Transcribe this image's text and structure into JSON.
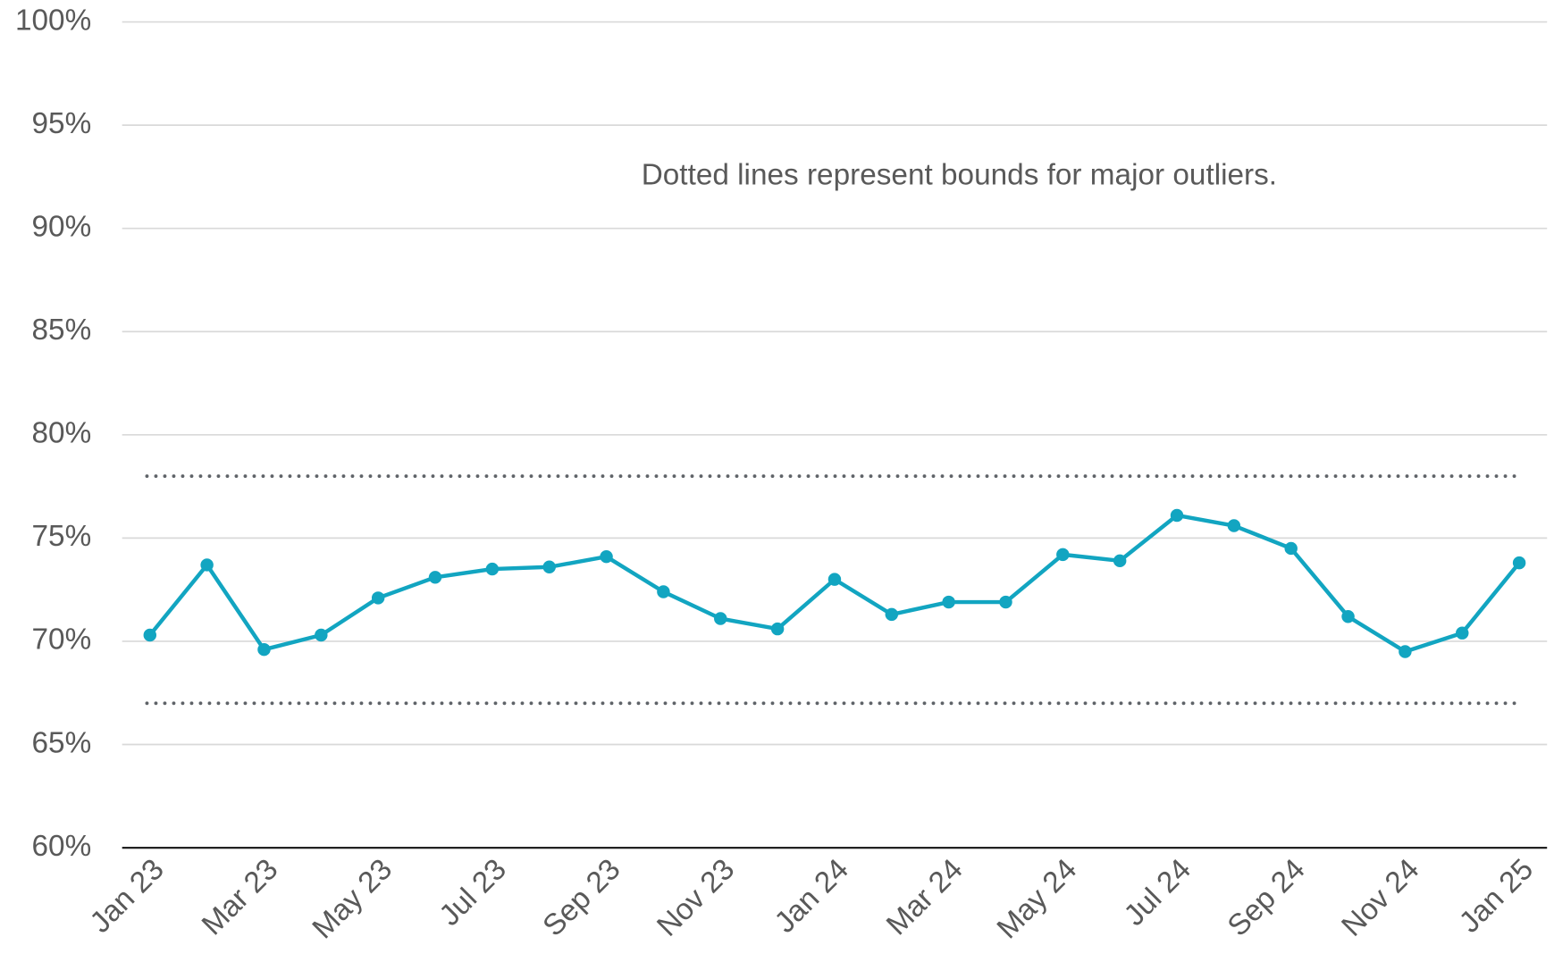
{
  "chart_data": {
    "type": "line",
    "annotation": "Dotted lines represent bounds for major outliers.",
    "categories": [
      "Jan 23",
      null,
      "Mar 23",
      null,
      "May 23",
      null,
      "Jul 23",
      null,
      "Sep 23",
      null,
      "Nov 23",
      null,
      "Jan 24",
      null,
      "Mar 24",
      null,
      "May 24",
      null,
      "Jul 24",
      null,
      "Sep 24",
      null,
      "Nov 24",
      null,
      "Jan 25"
    ],
    "series": [
      {
        "color": "#12a5c1",
        "values": [
          70.3,
          73.7,
          69.6,
          70.3,
          72.1,
          73.1,
          73.5,
          73.6,
          74.1,
          72.4,
          71.1,
          70.6,
          73.0,
          71.3,
          71.9,
          71.9,
          74.2,
          73.9,
          76.1,
          75.6,
          74.5,
          71.2,
          69.5,
          70.4,
          73.8
        ]
      }
    ],
    "reference_lines": [
      78,
      67
    ],
    "reference_color": "#5f6368",
    "ylim": [
      60,
      100
    ],
    "yticks": [
      {
        "value": 60,
        "label": "60%"
      },
      {
        "value": 65,
        "label": "65%"
      },
      {
        "value": 70,
        "label": "70%"
      },
      {
        "value": 75,
        "label": "75%"
      },
      {
        "value": 80,
        "label": "80%"
      },
      {
        "value": 85,
        "label": "85%"
      },
      {
        "value": 90,
        "label": "90%"
      },
      {
        "value": 95,
        "label": "95%"
      },
      {
        "value": 100,
        "label": "100%"
      }
    ],
    "grid": true
  }
}
